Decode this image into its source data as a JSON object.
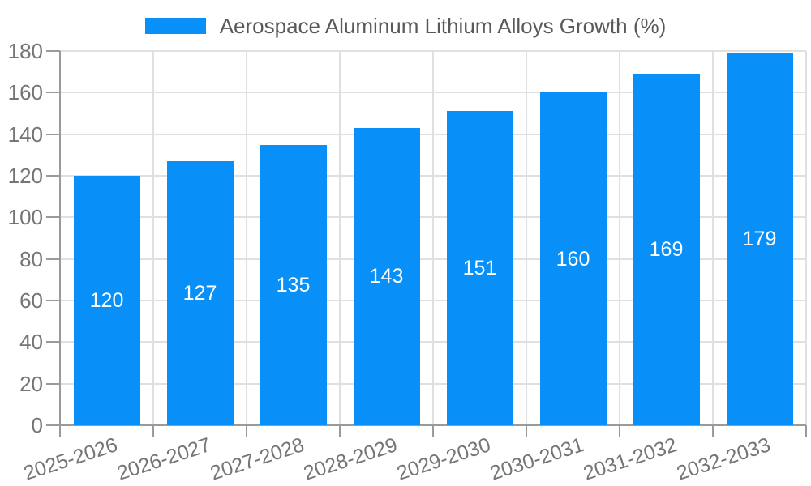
{
  "chart_data": {
    "type": "bar",
    "title": "Aerospace Aluminum Lithium Alloys Growth (%)",
    "categories": [
      "2025-2026",
      "2026-2027",
      "2027-2028",
      "2028-2029",
      "2029-2030",
      "2030-2031",
      "2031-2032",
      "2032-2033"
    ],
    "values": [
      120,
      127,
      135,
      143,
      151,
      160,
      169,
      179
    ],
    "series": [
      {
        "name": "Aerospace Aluminum Lithium Alloys Growth (%)",
        "values": [
          120,
          127,
          135,
          143,
          151,
          160,
          169,
          179
        ]
      }
    ],
    "xlabel": "",
    "ylabel": "",
    "ylim": [
      0,
      180
    ],
    "ytick_step": 20,
    "yticks": [
      0,
      20,
      40,
      60,
      80,
      100,
      120,
      140,
      160,
      180
    ],
    "grid": true,
    "legend_position": "top-center",
    "value_labels": "inside-center"
  },
  "legend": {
    "label": "Aerospace Aluminum Lithium Alloys Growth (%)"
  },
  "colors": {
    "bar": "#0890f8",
    "grid": "#e0e0e0",
    "axis": "#9a9a9a",
    "tick_text": "#757575",
    "legend_text": "#595959",
    "value_text": "#ffffff",
    "background": "#ffffff"
  }
}
